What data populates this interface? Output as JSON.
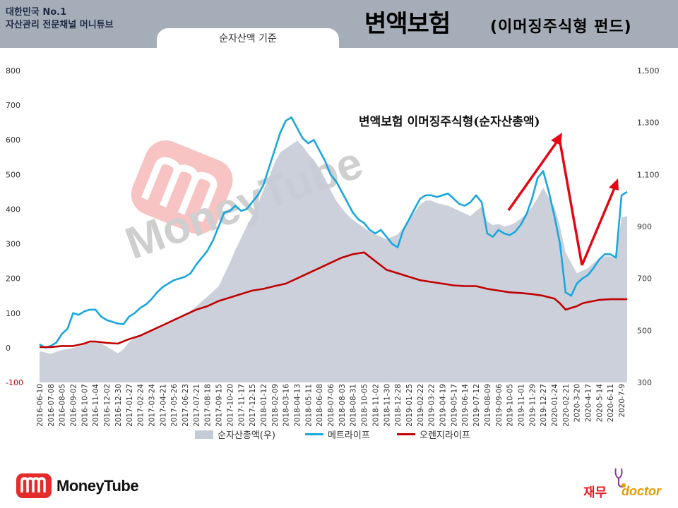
{
  "header": {
    "brand_line1": "대한민국 No.1",
    "brand_line2": "자산관리 전문채널 머니튜브",
    "tab_label": "순자산액 기준",
    "title_main": "변액보험",
    "title_sub": "(이머징주식형 펀드)"
  },
  "watermark": {
    "text": "MoneyTube"
  },
  "footer": {
    "logo_text": "MoneyTube",
    "jaemu_text": "재무",
    "doctor_text": "doctor"
  },
  "colors": {
    "header_bg": "#a5adb8",
    "area": "#c5cbd6",
    "metlife": "#19a7dc",
    "orange": "#c00000",
    "arrow": "#e30613",
    "wm": "#e52b2b"
  },
  "chart_data": {
    "type": "line",
    "annotation": "변액보험 이머징주식형(순자산총액)",
    "y_left": {
      "range": [
        -100,
        800
      ],
      "ticks": [
        "-100",
        "0",
        "100",
        "200",
        "300",
        "400",
        "500",
        "600",
        "700",
        "800"
      ]
    },
    "y_right": {
      "range": [
        300,
        1500
      ],
      "ticks": [
        "300",
        "500",
        "700",
        "900",
        "1,100",
        "1,300",
        "1,500"
      ]
    },
    "x_ticks": [
      "2016-06-10",
      "2016-07-08",
      "2016-08-05",
      "2016-09-02",
      "2016-10-07",
      "2016-11-04",
      "2016-12-02",
      "2016-12-30",
      "2017-01-27",
      "2017-02-24",
      "2017-03-24",
      "2017-04-21",
      "2017-05-26",
      "2017-06-23",
      "2017-07-21",
      "2017-08-18",
      "2017-09-15",
      "2017-10-20",
      "2017-11-17",
      "2017-12-15",
      "2018-01-12",
      "2018-02-09",
      "2018-03-16",
      "2018-04-13",
      "2018-05-11",
      "2018-06-08",
      "2018-07-06",
      "2018-08-03",
      "2018-08-31",
      "2018-10-05",
      "2018-11-02",
      "2018-11-30",
      "2018-12-28",
      "2019-01-25",
      "2019-02-22",
      "2019-03-22",
      "2019-04-19",
      "2019-05-17",
      "2019-06-14",
      "2019-07-12",
      "2019-08-09",
      "2019-09-06",
      "2019-10-05",
      "2019-11-01",
      "2019-11-29",
      "2019-12-27",
      "2020-01-24",
      "2020-02-21",
      "2020-3-20",
      "2020-4-17",
      "2020-5-14",
      "2020-6-11",
      "2020-7-9"
    ],
    "x_index": [
      0,
      2,
      4,
      6,
      8,
      10,
      12,
      14,
      16,
      18,
      20,
      22,
      24,
      26,
      28,
      30,
      32,
      34,
      36,
      38,
      40,
      42,
      44,
      46,
      48,
      50,
      52,
      54,
      56,
      58,
      60,
      62,
      64,
      66,
      68,
      70,
      72,
      74,
      76,
      78,
      80,
      82,
      84,
      86,
      88,
      90,
      92,
      94,
      96,
      98,
      100,
      102,
      104
    ],
    "x_count": 106,
    "series": [
      {
        "name": "순자산총액(우)",
        "type": "area",
        "axis": "right",
        "points": [
          [
            0,
            420
          ],
          [
            2,
            410
          ],
          [
            4,
            425
          ],
          [
            6,
            432
          ],
          [
            8,
            445
          ],
          [
            10,
            460
          ],
          [
            11,
            450
          ],
          [
            12,
            438
          ],
          [
            13,
            425
          ],
          [
            14,
            412
          ],
          [
            15,
            428
          ],
          [
            16,
            455
          ],
          [
            17,
            470
          ],
          [
            18,
            482
          ],
          [
            19,
            488
          ],
          [
            20,
            500
          ],
          [
            21,
            515
          ],
          [
            22,
            520
          ],
          [
            23,
            530
          ],
          [
            24,
            540
          ],
          [
            25,
            552
          ],
          [
            26,
            560
          ],
          [
            27,
            575
          ],
          [
            28,
            592
          ],
          [
            29,
            612
          ],
          [
            30,
            630
          ],
          [
            31,
            650
          ],
          [
            32,
            670
          ],
          [
            33,
            715
          ],
          [
            34,
            760
          ],
          [
            35,
            810
          ],
          [
            36,
            855
          ],
          [
            37,
            900
          ],
          [
            38,
            940
          ],
          [
            39,
            985
          ],
          [
            40,
            1040
          ],
          [
            41,
            1090
          ],
          [
            42,
            1145
          ],
          [
            43,
            1185
          ],
          [
            44,
            1200
          ],
          [
            45,
            1215
          ],
          [
            46,
            1230
          ],
          [
            47,
            1210
          ],
          [
            48,
            1180
          ],
          [
            49,
            1155
          ],
          [
            50,
            1125
          ],
          [
            51,
            1085
          ],
          [
            52,
            1040
          ],
          [
            53,
            1000
          ],
          [
            54,
            970
          ],
          [
            55,
            945
          ],
          [
            56,
            925
          ],
          [
            57,
            910
          ],
          [
            58,
            895
          ],
          [
            59,
            880
          ],
          [
            60,
            870
          ],
          [
            61,
            860
          ],
          [
            62,
            850
          ],
          [
            63,
            860
          ],
          [
            64,
            870
          ],
          [
            65,
            895
          ],
          [
            66,
            925
          ],
          [
            67,
            955
          ],
          [
            68,
            985
          ],
          [
            69,
            1000
          ],
          [
            70,
            1000
          ],
          [
            71,
            990
          ],
          [
            72,
            985
          ],
          [
            73,
            980
          ],
          [
            74,
            970
          ],
          [
            75,
            960
          ],
          [
            76,
            950
          ],
          [
            77,
            940
          ],
          [
            78,
            960
          ],
          [
            79,
            975
          ],
          [
            80,
            920
          ],
          [
            81,
            905
          ],
          [
            82,
            910
          ],
          [
            83,
            900
          ],
          [
            84,
            905
          ],
          [
            85,
            915
          ],
          [
            86,
            930
          ],
          [
            87,
            950
          ],
          [
            88,
            975
          ],
          [
            89,
            1010
          ],
          [
            90,
            1050
          ],
          [
            91,
            1010
          ],
          [
            92,
            975
          ],
          [
            93,
            900
          ],
          [
            94,
            800
          ],
          [
            95,
            760
          ],
          [
            96,
            720
          ],
          [
            97,
            730
          ],
          [
            98,
            740
          ],
          [
            99,
            760
          ],
          [
            100,
            775
          ],
          [
            101,
            785
          ],
          [
            102,
            785
          ],
          [
            103,
            780
          ],
          [
            104,
            935
          ],
          [
            105,
            940
          ]
        ]
      },
      {
        "name": "메트라이프",
        "type": "line",
        "axis": "left",
        "points": [
          [
            0,
            10
          ],
          [
            1,
            0
          ],
          [
            2,
            5
          ],
          [
            3,
            15
          ],
          [
            4,
            40
          ],
          [
            5,
            55
          ],
          [
            6,
            100
          ],
          [
            7,
            95
          ],
          [
            8,
            105
          ],
          [
            9,
            110
          ],
          [
            10,
            110
          ],
          [
            11,
            90
          ],
          [
            12,
            80
          ],
          [
            13,
            75
          ],
          [
            14,
            70
          ],
          [
            15,
            68
          ],
          [
            16,
            90
          ],
          [
            17,
            100
          ],
          [
            18,
            115
          ],
          [
            19,
            125
          ],
          [
            20,
            140
          ],
          [
            21,
            160
          ],
          [
            22,
            175
          ],
          [
            23,
            185
          ],
          [
            24,
            195
          ],
          [
            25,
            200
          ],
          [
            26,
            205
          ],
          [
            27,
            215
          ],
          [
            28,
            240
          ],
          [
            29,
            260
          ],
          [
            30,
            280
          ],
          [
            31,
            310
          ],
          [
            32,
            350
          ],
          [
            33,
            390
          ],
          [
            34,
            395
          ],
          [
            35,
            410
          ],
          [
            36,
            395
          ],
          [
            37,
            400
          ],
          [
            38,
            420
          ],
          [
            39,
            440
          ],
          [
            40,
            470
          ],
          [
            41,
            520
          ],
          [
            42,
            570
          ],
          [
            43,
            620
          ],
          [
            44,
            655
          ],
          [
            45,
            665
          ],
          [
            46,
            635
          ],
          [
            47,
            605
          ],
          [
            48,
            590
          ],
          [
            49,
            600
          ],
          [
            50,
            570
          ],
          [
            51,
            540
          ],
          [
            52,
            500
          ],
          [
            53,
            480
          ],
          [
            54,
            450
          ],
          [
            55,
            420
          ],
          [
            56,
            390
          ],
          [
            57,
            370
          ],
          [
            58,
            360
          ],
          [
            59,
            340
          ],
          [
            60,
            330
          ],
          [
            61,
            340
          ],
          [
            62,
            320
          ],
          [
            63,
            300
          ],
          [
            64,
            290
          ],
          [
            65,
            340
          ],
          [
            66,
            370
          ],
          [
            67,
            400
          ],
          [
            68,
            430
          ],
          [
            69,
            440
          ],
          [
            70,
            440
          ],
          [
            71,
            435
          ],
          [
            72,
            440
          ],
          [
            73,
            445
          ],
          [
            74,
            430
          ],
          [
            75,
            415
          ],
          [
            76,
            410
          ],
          [
            77,
            420
          ],
          [
            78,
            440
          ],
          [
            79,
            420
          ],
          [
            80,
            330
          ],
          [
            81,
            320
          ],
          [
            82,
            340
          ],
          [
            83,
            330
          ],
          [
            84,
            325
          ],
          [
            85,
            335
          ],
          [
            86,
            355
          ],
          [
            87,
            385
          ],
          [
            88,
            430
          ],
          [
            89,
            490
          ],
          [
            90,
            510
          ],
          [
            91,
            450
          ],
          [
            92,
            380
          ],
          [
            93,
            300
          ],
          [
            94,
            160
          ],
          [
            95,
            150
          ],
          [
            96,
            185
          ],
          [
            97,
            200
          ],
          [
            98,
            210
          ],
          [
            99,
            230
          ],
          [
            100,
            255
          ],
          [
            101,
            270
          ],
          [
            102,
            270
          ],
          [
            103,
            260
          ],
          [
            104,
            440
          ],
          [
            105,
            450
          ]
        ]
      },
      {
        "name": "오렌지라이프",
        "type": "line",
        "axis": "left",
        "points": [
          [
            0,
            2
          ],
          [
            2,
            2
          ],
          [
            4,
            5
          ],
          [
            6,
            5
          ],
          [
            8,
            12
          ],
          [
            9,
            18
          ],
          [
            10,
            18
          ],
          [
            11,
            16
          ],
          [
            12,
            14
          ],
          [
            14,
            12
          ],
          [
            16,
            25
          ],
          [
            18,
            35
          ],
          [
            20,
            50
          ],
          [
            22,
            65
          ],
          [
            24,
            80
          ],
          [
            26,
            95
          ],
          [
            28,
            110
          ],
          [
            30,
            120
          ],
          [
            32,
            135
          ],
          [
            34,
            145
          ],
          [
            36,
            155
          ],
          [
            38,
            165
          ],
          [
            40,
            170
          ],
          [
            42,
            178
          ],
          [
            44,
            185
          ],
          [
            46,
            200
          ],
          [
            48,
            215
          ],
          [
            50,
            230
          ],
          [
            52,
            245
          ],
          [
            54,
            260
          ],
          [
            56,
            270
          ],
          [
            58,
            275
          ],
          [
            60,
            250
          ],
          [
            62,
            225
          ],
          [
            64,
            215
          ],
          [
            66,
            205
          ],
          [
            68,
            195
          ],
          [
            70,
            190
          ],
          [
            72,
            185
          ],
          [
            74,
            180
          ],
          [
            76,
            178
          ],
          [
            78,
            178
          ],
          [
            80,
            170
          ],
          [
            82,
            165
          ],
          [
            84,
            160
          ],
          [
            86,
            158
          ],
          [
            88,
            155
          ],
          [
            90,
            150
          ],
          [
            92,
            142
          ],
          [
            93,
            128
          ],
          [
            94,
            110
          ],
          [
            95,
            115
          ],
          [
            96,
            120
          ],
          [
            97,
            128
          ],
          [
            98,
            132
          ],
          [
            100,
            138
          ],
          [
            102,
            140
          ],
          [
            104,
            140
          ],
          [
            105,
            140
          ]
        ]
      }
    ]
  }
}
